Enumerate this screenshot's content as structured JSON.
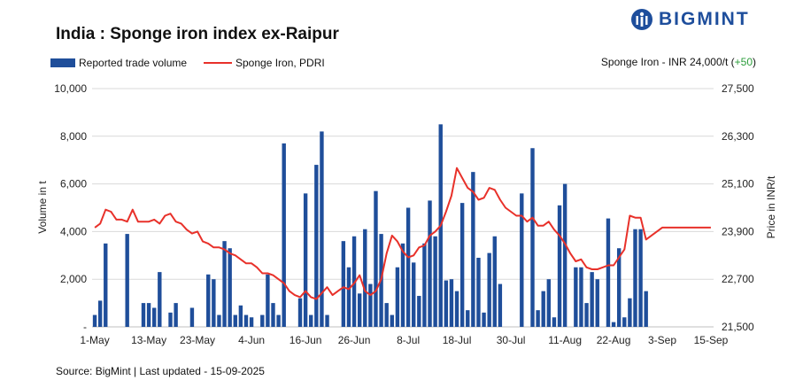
{
  "header": {
    "title": "India : Sponge iron index ex-Raipur",
    "logo_text": "BIGMINT",
    "price_note_prefix": "Sponge Iron - INR 24,000/t (",
    "price_change": "+50",
    "price_note_suffix": ")"
  },
  "footer": {
    "source": "Source: BigMint | Last updated - 15-09-2025"
  },
  "colors": {
    "bar": "#1f4e9a",
    "line": "#e8312a",
    "grid": "#d9d9d9",
    "change_positive": "#2a9d3a",
    "logo": "#1e4e9c"
  },
  "chart_data": {
    "type": "bar",
    "legend": [
      "Reported trade volume",
      "Sponge Iron, PDRI"
    ],
    "legend_position": "top-left",
    "grid": true,
    "xlabel": "",
    "ylabel": "Volume in t",
    "y2label": "Price in INR/t",
    "ylim": [
      0,
      10000
    ],
    "y2lim": [
      21500,
      27500
    ],
    "y_ticks": [
      "-",
      "2,000",
      "4,000",
      "6,000",
      "8,000",
      "10,000"
    ],
    "y_tick_values": [
      0,
      2000,
      4000,
      6000,
      8000,
      10000
    ],
    "y2_ticks": [
      "21,500",
      "22,700",
      "23,900",
      "25,100",
      "26,300",
      "27,500"
    ],
    "y2_tick_values": [
      21500,
      22700,
      23900,
      25100,
      26300,
      27500
    ],
    "x_tick_labels": [
      "1-May",
      "13-May",
      "23-May",
      "4-Jun",
      "16-Jun",
      "26-Jun",
      "8-Jul",
      "18-Jul",
      "30-Jul",
      "11-Aug",
      "22-Aug",
      "3-Sep",
      "15-Sep"
    ],
    "x_tick_index": [
      0,
      10,
      19,
      29,
      39,
      48,
      58,
      67,
      77,
      87,
      96,
      105,
      114
    ],
    "point_count": 115,
    "series": [
      {
        "name": "Reported trade volume",
        "type": "bar",
        "axis": "left",
        "values": [
          500,
          1100,
          3500,
          0,
          0,
          0,
          3900,
          0,
          0,
          1000,
          1000,
          800,
          2300,
          0,
          600,
          1000,
          0,
          0,
          800,
          0,
          0,
          2200,
          2000,
          500,
          3600,
          3300,
          500,
          900,
          500,
          400,
          0,
          500,
          2200,
          1000,
          500,
          7700,
          0,
          0,
          1200,
          5600,
          500,
          6800,
          8200,
          500,
          0,
          0,
          3600,
          2500,
          3800,
          1400,
          4100,
          1800,
          5700,
          3900,
          1000,
          500,
          2500,
          3500,
          5000,
          2700,
          1300,
          3500,
          5300,
          3800,
          8500,
          1950,
          2000,
          1500,
          5200,
          700,
          6500,
          2900,
          600,
          3100,
          3800,
          1800,
          0,
          0,
          0,
          5600,
          0,
          7500,
          700,
          1500,
          2000,
          400,
          5100,
          6000,
          0,
          2500,
          2500,
          1000,
          2300,
          2000,
          0,
          4550,
          200,
          3300,
          400,
          1200,
          4100,
          4100,
          1500,
          0,
          0,
          0,
          0,
          0,
          0,
          0,
          0,
          0,
          0,
          0,
          0
        ]
      },
      {
        "name": "Sponge Iron, PDRI",
        "type": "line",
        "axis": "right",
        "values": [
          24000,
          24100,
          24450,
          24400,
          24200,
          24200,
          24150,
          24450,
          24150,
          24150,
          24150,
          24200,
          24100,
          24300,
          24350,
          24150,
          24100,
          23950,
          23850,
          23900,
          23650,
          23600,
          23500,
          23500,
          23450,
          23350,
          23300,
          23200,
          23100,
          23100,
          23000,
          22850,
          22850,
          22800,
          22700,
          22600,
          22400,
          22300,
          22250,
          22400,
          22250,
          22200,
          22350,
          22500,
          22300,
          22400,
          22500,
          22450,
          22600,
          22800,
          22400,
          22300,
          22400,
          22700,
          23350,
          23800,
          23650,
          23400,
          23250,
          23300,
          23500,
          23550,
          23800,
          23900,
          24050,
          24400,
          24800,
          25500,
          25250,
          25000,
          24900,
          24700,
          24750,
          25000,
          24950,
          24700,
          24500,
          24400,
          24300,
          24300,
          24150,
          24250,
          24050,
          24050,
          24150,
          23950,
          23800,
          23600,
          23350,
          23150,
          23200,
          23000,
          22950,
          22950,
          23000,
          23050,
          23050,
          23250,
          23450,
          24300,
          24250,
          24250,
          23700,
          23800,
          23900,
          24000,
          24000,
          24000,
          24000,
          24000,
          24000,
          24000,
          24000,
          24000,
          24000
        ]
      }
    ]
  }
}
